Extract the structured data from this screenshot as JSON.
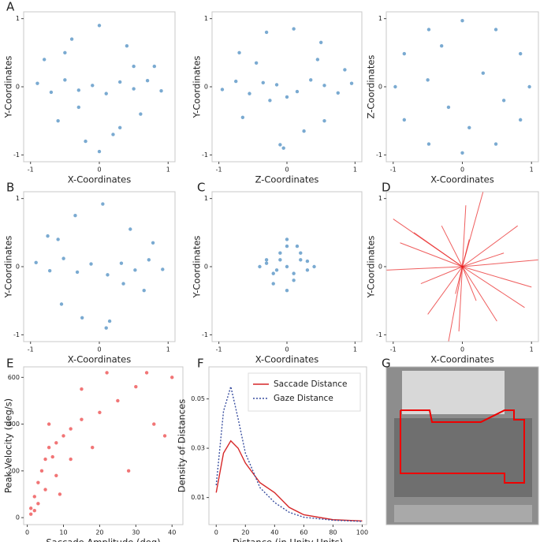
{
  "panel_labels": [
    "A",
    "B",
    "C",
    "D",
    "E",
    "F",
    "G"
  ],
  "chart_data": [
    {
      "type": "scatter",
      "xlabel": "X-Coordinates",
      "ylabel": "Y-Coordinates",
      "color": "#2271b3",
      "xlim": [
        -1.1,
        1.1
      ],
      "ylim": [
        -1.1,
        1.1
      ],
      "xticks": [
        -1,
        0,
        1
      ],
      "yticks": [
        -1,
        0,
        1
      ],
      "x": [
        -0.9,
        -0.7,
        -0.5,
        -0.3,
        -0.1,
        0.1,
        0.3,
        0.5,
        0.7,
        0.9,
        -0.8,
        -0.4,
        0,
        0.4,
        0.8,
        -0.6,
        -0.2,
        0.2,
        0.6,
        0.0,
        -0.5,
        0.5,
        -0.3,
        0.3
      ],
      "values": [
        0.05,
        -0.08,
        0.1,
        -0.05,
        0.02,
        -0.1,
        0.07,
        -0.03,
        0.09,
        -0.06,
        0.4,
        0.7,
        0.9,
        0.6,
        0.3,
        -0.5,
        -0.8,
        -0.7,
        -0.4,
        -0.95,
        0.5,
        0.3,
        -0.3,
        -0.6
      ]
    },
    {
      "type": "scatter",
      "xlabel": "Z-Coordinates",
      "ylabel": "Y-Coordinates",
      "color": "#2271b3",
      "xlim": [
        -1.1,
        1.1
      ],
      "ylim": [
        -1.1,
        1.1
      ],
      "xticks": [
        -1,
        0,
        1
      ],
      "yticks": [
        -1,
        0,
        1
      ],
      "x": [
        -0.95,
        -0.75,
        -0.55,
        -0.35,
        -0.15,
        0.15,
        0.35,
        0.55,
        0.75,
        0.95,
        -0.7,
        -0.3,
        0.1,
        0.5,
        0.85,
        -0.65,
        -0.1,
        0.25,
        0.55,
        -0.05,
        -0.45,
        0.45,
        -0.25,
        0.0
      ],
      "values": [
        -0.04,
        0.08,
        -0.1,
        0.06,
        0.03,
        -0.07,
        0.1,
        0.02,
        -0.09,
        0.05,
        0.5,
        0.8,
        0.85,
        0.65,
        0.25,
        -0.45,
        -0.85,
        -0.65,
        -0.5,
        -0.9,
        0.35,
        0.4,
        -0.2,
        -0.15
      ]
    },
    {
      "type": "scatter",
      "xlabel": "X-Coordinates",
      "ylabel": "Z-Coordinates",
      "color": "#2271b3",
      "xlim": [
        -1.1,
        1.1
      ],
      "ylim": [
        -1.1,
        1.1
      ],
      "xticks": [
        -1,
        0,
        1
      ],
      "yticks": [
        -1,
        0,
        1
      ],
      "x": [
        0.97,
        0.84,
        0.485,
        0,
        -0.485,
        -0.84,
        -0.97,
        -0.84,
        -0.485,
        0,
        0.485,
        0.84,
        0.3,
        -0.5,
        0.1,
        -0.2,
        0.6,
        -0.3
      ],
      "values": [
        0,
        0.485,
        0.84,
        0.97,
        0.84,
        0.485,
        0,
        -0.485,
        -0.84,
        -0.97,
        -0.84,
        -0.485,
        0.2,
        0.1,
        -0.6,
        -0.3,
        -0.2,
        0.6
      ]
    },
    {
      "type": "scatter",
      "xlabel": "X-Coordinates",
      "ylabel": "Y-Coordinates",
      "color": "#2271b3",
      "xlim": [
        -1.1,
        1.1
      ],
      "ylim": [
        -1.1,
        1.1
      ],
      "xticks": [
        -1,
        0,
        1
      ],
      "yticks": [
        -1,
        0,
        1
      ],
      "x": [
        -0.92,
        -0.72,
        -0.52,
        -0.32,
        -0.12,
        0.12,
        0.32,
        0.52,
        0.72,
        0.92,
        -0.75,
        -0.35,
        0.05,
        0.45,
        0.78,
        -0.55,
        -0.25,
        0.15,
        0.65,
        0.1,
        -0.6,
        0.35
      ],
      "values": [
        0.06,
        -0.06,
        0.12,
        -0.08,
        0.04,
        -0.12,
        0.05,
        -0.05,
        0.1,
        -0.04,
        0.45,
        0.75,
        0.92,
        0.55,
        0.35,
        -0.55,
        -0.75,
        -0.8,
        -0.35,
        -0.9,
        0.4,
        -0.25
      ]
    },
    {
      "type": "scatter",
      "xlabel": "X-Coordinates",
      "ylabel": "Y-Coordinates",
      "color": "#2271b3",
      "xlim": [
        -1.1,
        1.1
      ],
      "ylim": [
        -1.1,
        1.1
      ],
      "xticks": [
        -1,
        0,
        1
      ],
      "yticks": [
        -1,
        0,
        1
      ],
      "x": [
        -0.4,
        -0.3,
        -0.2,
        -0.1,
        0,
        0.1,
        0.2,
        0.3,
        0.4,
        -0.2,
        0,
        0.2,
        -0.1,
        0.1,
        0,
        -0.3,
        0.3,
        0,
        -0.15,
        0.15
      ],
      "values": [
        0,
        0.05,
        -0.1,
        0.2,
        0.3,
        -0.2,
        0.1,
        -0.05,
        0,
        -0.25,
        -0.35,
        0.2,
        0.1,
        -0.1,
        0,
        0.1,
        0.08,
        0.4,
        -0.05,
        0.3
      ]
    },
    {
      "type": "vector",
      "xlabel": "X-Coordinates",
      "ylabel": "Y-Coordinates",
      "color": "#e8191a",
      "xlim": [
        -1.1,
        1.1
      ],
      "ylim": [
        -1.1,
        1.1
      ],
      "xticks": [
        -1,
        0,
        1
      ],
      "yticks": [
        -1,
        0,
        1
      ],
      "x": [
        1.1,
        -1.1,
        0.3,
        -0.2,
        0.8,
        -0.7,
        0.5,
        -0.5,
        0.05,
        -0.05,
        1.0,
        -0.9,
        0.2,
        -0.3,
        0.6,
        -0.6,
        0.9,
        -1.0,
        0.1,
        -0.1
      ],
      "values": [
        0.1,
        -0.05,
        1.1,
        -1.1,
        0.6,
        0.5,
        -0.8,
        -0.7,
        0.9,
        -0.95,
        -0.3,
        0.35,
        -0.5,
        0.6,
        0.2,
        -0.25,
        -0.6,
        0.7,
        0.4,
        -0.4
      ]
    },
    {
      "type": "scatter",
      "xlabel": "Saccade Amplitude (deg)",
      "ylabel": "Peak Velocity (deg/s)",
      "color": "#e8191a",
      "xlim": [
        -1,
        43
      ],
      "ylim": [
        -30,
        645
      ],
      "xticks": [
        0,
        10,
        20,
        30,
        40
      ],
      "yticks": [
        0,
        200,
        400,
        600
      ],
      "x": [
        1,
        2,
        3,
        4,
        5,
        6,
        7,
        8,
        10,
        12,
        15,
        18,
        20,
        25,
        30,
        35,
        40,
        2,
        5,
        8,
        3,
        12,
        22,
        28,
        38,
        6,
        1,
        15,
        33,
        9
      ],
      "values": [
        40,
        90,
        150,
        200,
        250,
        300,
        260,
        320,
        350,
        380,
        420,
        300,
        450,
        500,
        560,
        400,
        600,
        30,
        120,
        180,
        60,
        250,
        620,
        200,
        350,
        400,
        15,
        550,
        620,
        100
      ]
    },
    {
      "type": "line",
      "xlabel": "Distance (in Unity Units)",
      "ylabel": "Density of Distances",
      "legend": "upper right",
      "xlim": [
        -5,
        103
      ],
      "ylim": [
        -0.001,
        0.063
      ],
      "xticks": [
        0,
        20,
        40,
        60,
        80,
        100
      ],
      "yticks": [
        0.01,
        0.03,
        0.05
      ],
      "x": [
        0,
        5,
        10,
        15,
        20,
        30,
        40,
        50,
        60,
        80,
        100
      ],
      "series": [
        {
          "name": "Saccade Distance",
          "color": "#d62728",
          "linestyle": "solid",
          "values": [
            0.012,
            0.028,
            0.033,
            0.03,
            0.024,
            0.016,
            0.012,
            0.006,
            0.003,
            0.001,
            0.0005
          ]
        },
        {
          "name": "Gaze Distance",
          "color": "#3a4fa0",
          "linestyle": "dotted",
          "values": [
            0.015,
            0.045,
            0.055,
            0.042,
            0.028,
            0.014,
            0.008,
            0.004,
            0.002,
            0.0008,
            0.0003
          ]
        }
      ]
    }
  ]
}
